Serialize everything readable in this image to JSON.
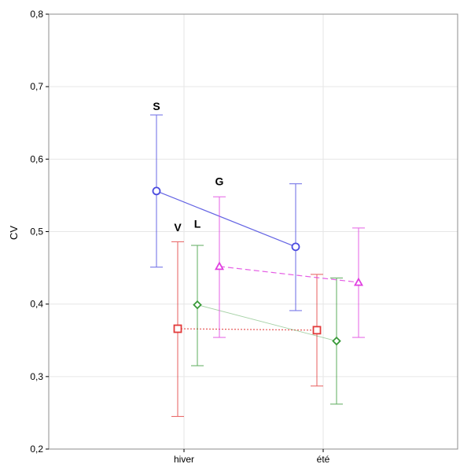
{
  "chart_data": {
    "type": "line",
    "title": "",
    "xlabel": "",
    "ylabel": "CV",
    "categories": [
      "hiver",
      "été"
    ],
    "ylim": [
      0.2,
      0.8
    ],
    "yticks": [
      "0,2",
      "0,3",
      "0,4",
      "0,5",
      "0,6",
      "0,7",
      "0,8"
    ],
    "grid": true,
    "legend": "none",
    "series": [
      {
        "name": "S",
        "color": "#4a4adf",
        "marker": "circle",
        "line_style": "solid",
        "values": [
          0.556,
          0.479
        ],
        "lower": [
          0.451,
          0.391
        ],
        "upper": [
          0.661,
          0.566
        ]
      },
      {
        "name": "V",
        "color": "#e23a3a",
        "marker": "square",
        "line_style": "dotted",
        "values": [
          0.366,
          0.364
        ],
        "lower": [
          0.245,
          0.287
        ],
        "upper": [
          0.486,
          0.441
        ]
      },
      {
        "name": "L",
        "color": "#3a9a3a",
        "marker": "diamond",
        "line_style": "solid-light",
        "values": [
          0.399,
          0.349
        ],
        "lower": [
          0.315,
          0.262
        ],
        "upper": [
          0.481,
          0.436
        ]
      },
      {
        "name": "G",
        "color": "#e040e0",
        "marker": "triangle",
        "line_style": "dashed",
        "values": [
          0.452,
          0.43
        ],
        "lower": [
          0.354,
          0.354
        ],
        "upper": [
          0.548,
          0.505
        ]
      }
    ]
  }
}
